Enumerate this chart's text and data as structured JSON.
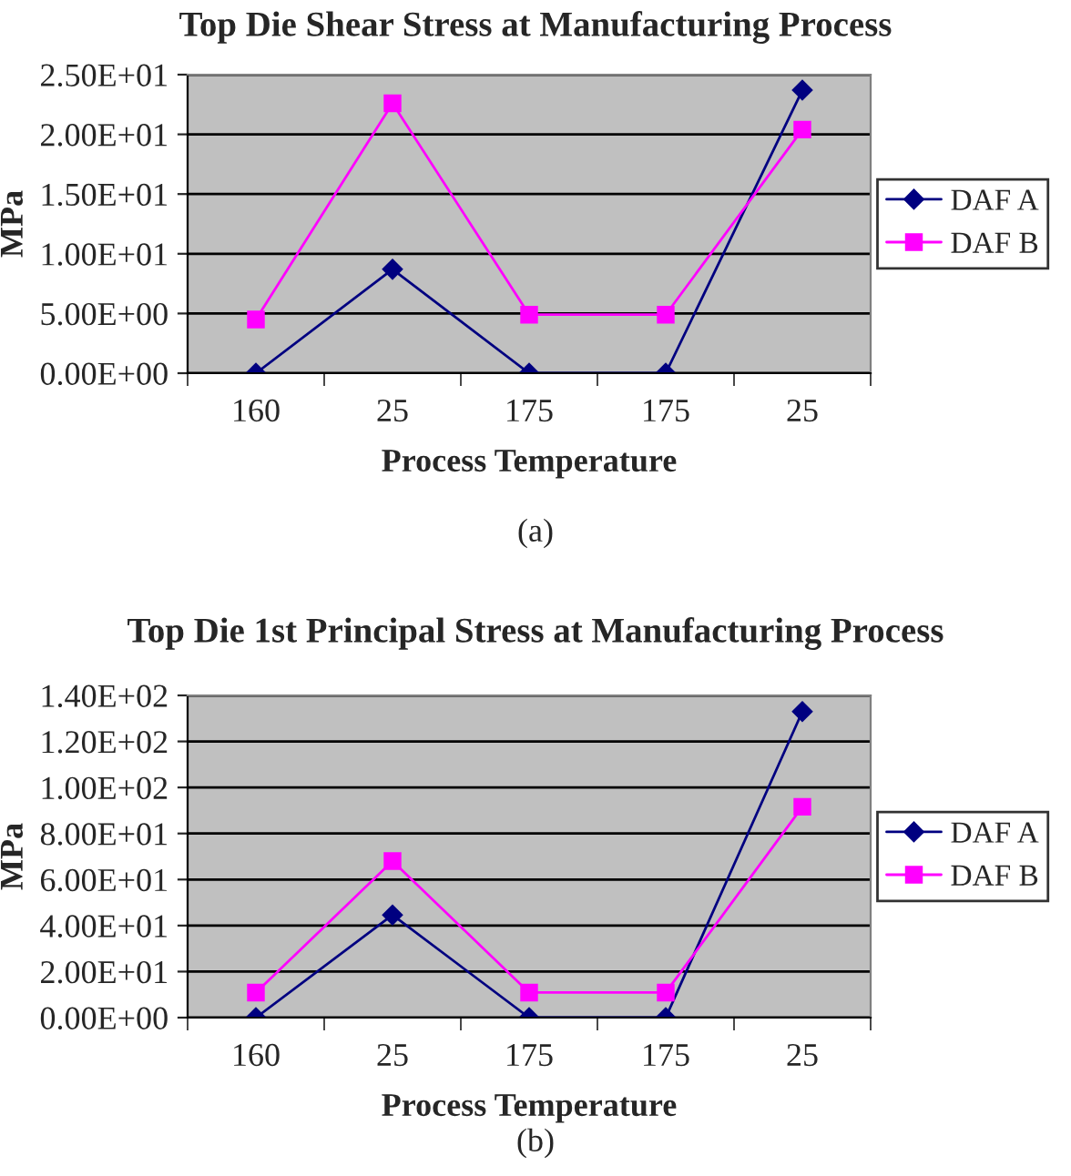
{
  "chart_data": [
    {
      "type": "line",
      "title": "Top Die Shear Stress at Manufacturing Process",
      "xlabel": "Process Temperature",
      "ylabel": "MPa",
      "categories": [
        "160",
        "25",
        "175",
        "175",
        "25"
      ],
      "series": [
        {
          "name": "DAF A",
          "color": "#000080",
          "marker": "diamond",
          "values": [
            0,
            8.7,
            0,
            0,
            23.7
          ]
        },
        {
          "name": "DAF B",
          "color": "#ff00ff",
          "marker": "square",
          "values": [
            4.5,
            22.6,
            4.9,
            4.9,
            20.4
          ]
        }
      ],
      "ylim": [
        0,
        25
      ],
      "yticks": [
        {
          "value": 0,
          "label": "0.00E+00"
        },
        {
          "value": 5,
          "label": "5.00E+00"
        },
        {
          "value": 10,
          "label": "1.00E+01"
        },
        {
          "value": 15,
          "label": "1.50E+01"
        },
        {
          "value": 20,
          "label": "2.00E+01"
        },
        {
          "value": 25,
          "label": "2.50E+01"
        }
      ],
      "grid": "y",
      "legend": "right",
      "annotations": [
        "(a)"
      ]
    },
    {
      "type": "line",
      "title": "Top Die 1st Principal Stress at Manufacturing Process",
      "xlabel": "Process Temperature",
      "ylabel": "MPa",
      "categories": [
        "160",
        "25",
        "175",
        "175",
        "25"
      ],
      "series": [
        {
          "name": "DAF A",
          "color": "#000080",
          "marker": "diamond",
          "values": [
            0,
            44.6,
            0,
            0,
            133
          ]
        },
        {
          "name": "DAF B",
          "color": "#ff00ff",
          "marker": "square",
          "values": [
            10.9,
            68,
            10.9,
            10.9,
            91.6
          ]
        }
      ],
      "ylim": [
        0,
        140
      ],
      "yticks": [
        {
          "value": 0,
          "label": "0.00E+00"
        },
        {
          "value": 20,
          "label": "2.00E+01"
        },
        {
          "value": 40,
          "label": "4.00E+01"
        },
        {
          "value": 60,
          "label": "6.00E+01"
        },
        {
          "value": 80,
          "label": "8.00E+01"
        },
        {
          "value": 100,
          "label": "1.00E+02"
        },
        {
          "value": 120,
          "label": "1.20E+02"
        },
        {
          "value": 140,
          "label": "1.40E+02"
        }
      ],
      "grid": "y",
      "legend": "right",
      "annotations": [
        "(b)"
      ]
    }
  ]
}
